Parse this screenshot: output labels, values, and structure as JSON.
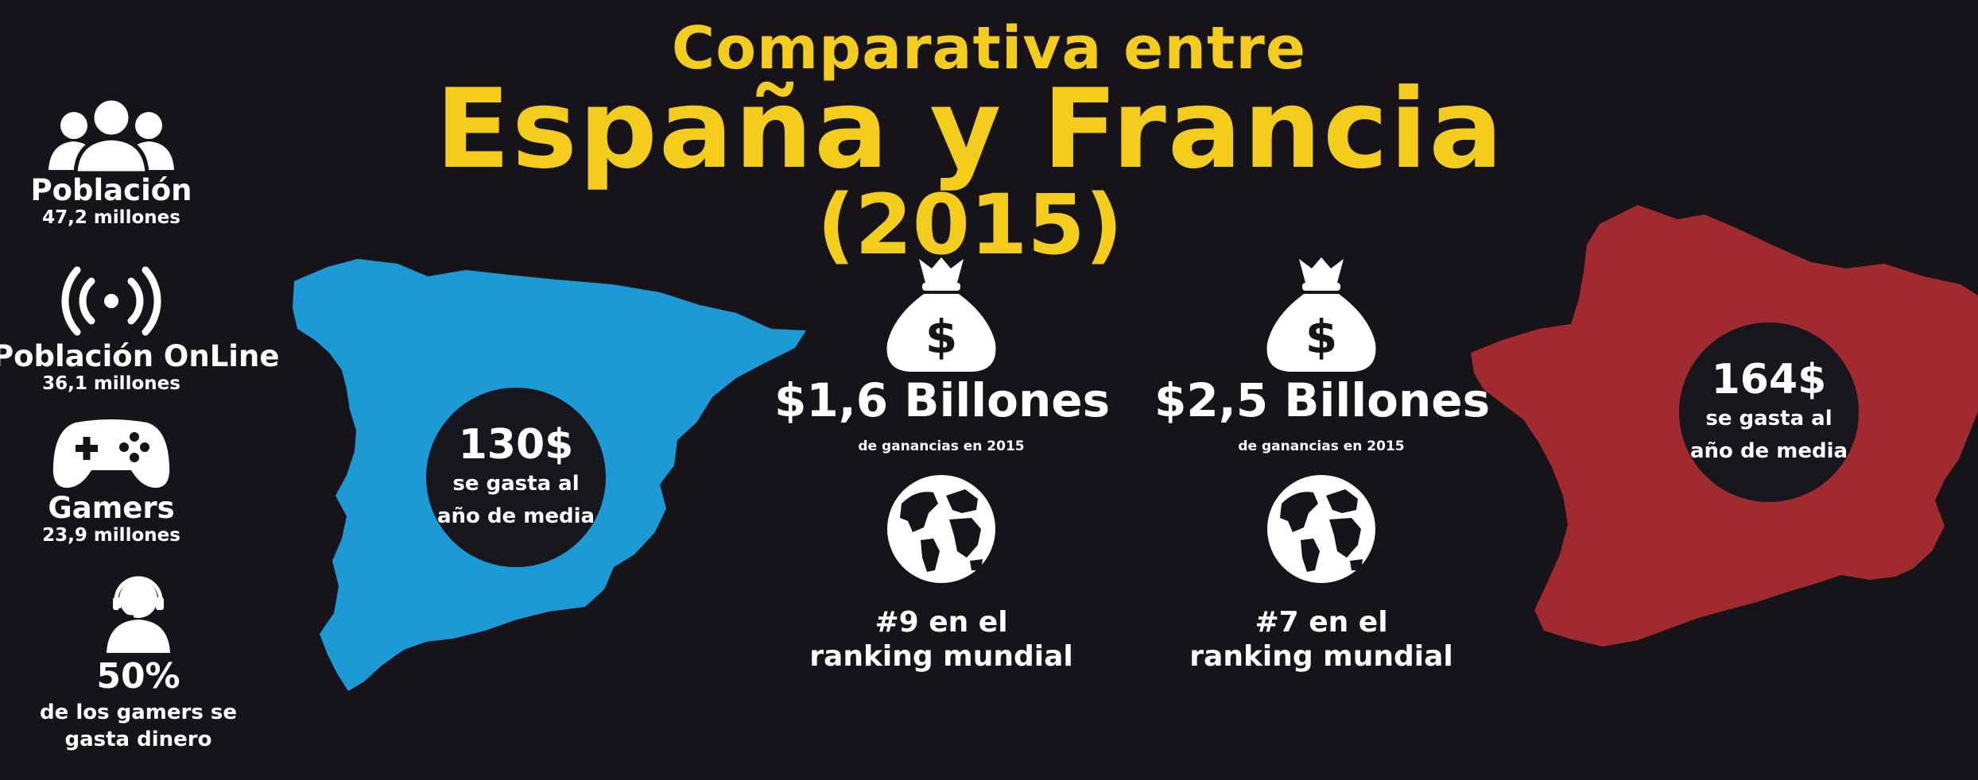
{
  "header": {
    "line1": "Comparativa entre",
    "line2": "España y Francia",
    "line3": "(2015)"
  },
  "left_stats": [
    {
      "icon": "people-group-icon",
      "label": "Población",
      "value": "47,2 millones"
    },
    {
      "icon": "wifi-signal-icon",
      "label": "Población OnLine",
      "value": "36,1 millones"
    },
    {
      "icon": "gamepad-icon",
      "label": "Gamers",
      "value": "23,9 millones"
    },
    {
      "icon": "gamer-headset-icon",
      "label": "50%",
      "value": "de los gamers se gasta dinero"
    }
  ],
  "spain": {
    "color": "#1b9ad6",
    "spend_amount": "130$",
    "spend_line1": "se gasta al",
    "spend_line2": "año de media",
    "revenue": "$1,6 Billones",
    "revenue_desc": "de ganancias en 2015",
    "rank_line1": "#9 en el",
    "rank_line2": "ranking mundial"
  },
  "france": {
    "color": "#a02a2e",
    "spend_amount": "164$",
    "spend_line1": "se gasta al",
    "spend_line2": "año de media",
    "revenue": "$2,5 Billones",
    "revenue_desc": "de ganancias en 2015",
    "rank_line1": "#7 en el",
    "rank_line2": "ranking mundial"
  },
  "colors": {
    "background": "#161419",
    "title": "#f4cc1c",
    "text": "#ffffff"
  }
}
